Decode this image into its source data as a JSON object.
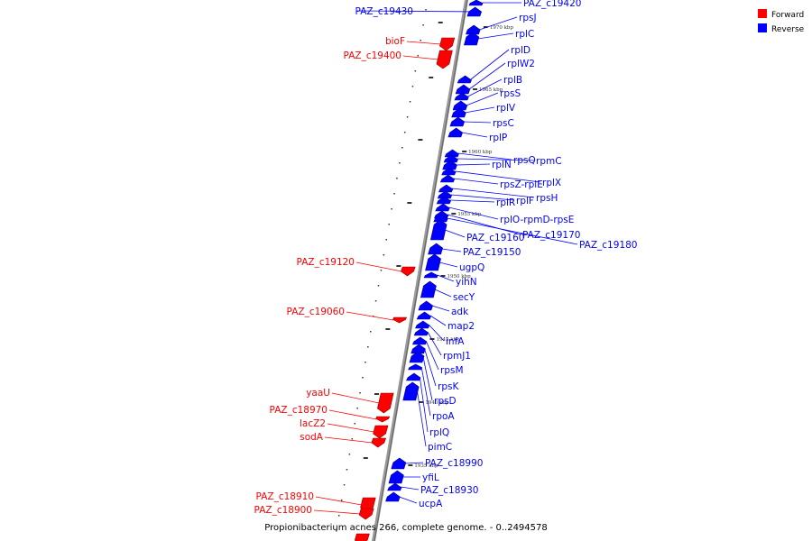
{
  "caption": "Propionibacterium acnes 266, complete genome. - 0..2494578",
  "legend": {
    "forward_label": "Forward",
    "reverse_label": "Reverse",
    "forward_color": "#ff0000",
    "reverse_color": "#0000ff"
  },
  "ticks": [
    {
      "label": "1970 kbp"
    },
    {
      "label": "1965 kbp"
    },
    {
      "label": "1960 kbp"
    },
    {
      "label": "1955 kbp"
    },
    {
      "label": "1950 kbp"
    },
    {
      "label": "1945 kbp"
    },
    {
      "label": "1940 kbp"
    },
    {
      "label": "1935 kbp"
    }
  ],
  "reverse_genes": [
    {
      "label": "PAZ_c19430"
    },
    {
      "label": "PAZ_c19420"
    },
    {
      "label": "rpsJ"
    },
    {
      "label": "rplC"
    },
    {
      "label": "rplD"
    },
    {
      "label": "rplW2"
    },
    {
      "label": "rplB"
    },
    {
      "label": "rpsS"
    },
    {
      "label": "rplV"
    },
    {
      "label": "rpsC"
    },
    {
      "label": "rplP"
    },
    {
      "label": "rpsQ"
    },
    {
      "label": "rpmC"
    },
    {
      "label": "rplN"
    },
    {
      "label": "rplX"
    },
    {
      "label": "rpsZ-rplE"
    },
    {
      "label": "rpsH"
    },
    {
      "label": "rplF"
    },
    {
      "label": "rplR"
    },
    {
      "label": "rplO-rpmD-rpsE"
    },
    {
      "label": "PAZ_c19170"
    },
    {
      "label": "PAZ_c19180"
    },
    {
      "label": "PAZ_c19160"
    },
    {
      "label": "PAZ_c19150"
    },
    {
      "label": "ugpQ"
    },
    {
      "label": "yihN"
    },
    {
      "label": "secY"
    },
    {
      "label": "adk"
    },
    {
      "label": "map2"
    },
    {
      "label": "infA"
    },
    {
      "label": "rpmJ1"
    },
    {
      "label": "rpsM"
    },
    {
      "label": "rpsK"
    },
    {
      "label": "rpsD"
    },
    {
      "label": "rpoA"
    },
    {
      "label": "rplQ"
    },
    {
      "label": "pimC"
    },
    {
      "label": "PAZ_c18990"
    },
    {
      "label": "yfiL"
    },
    {
      "label": "PAZ_c18930"
    },
    {
      "label": "ucpA"
    }
  ],
  "forward_genes": [
    {
      "label": "bioF"
    },
    {
      "label": "PAZ_c19400"
    },
    {
      "label": "PAZ_c19120"
    },
    {
      "label": "PAZ_c19060"
    },
    {
      "label": "yaaU"
    },
    {
      "label": "PAZ_c18970"
    },
    {
      "label": "lacZ2"
    },
    {
      "label": "sodA"
    },
    {
      "label": "PAZ_c18910"
    },
    {
      "label": "PAZ_c18900"
    }
  ]
}
